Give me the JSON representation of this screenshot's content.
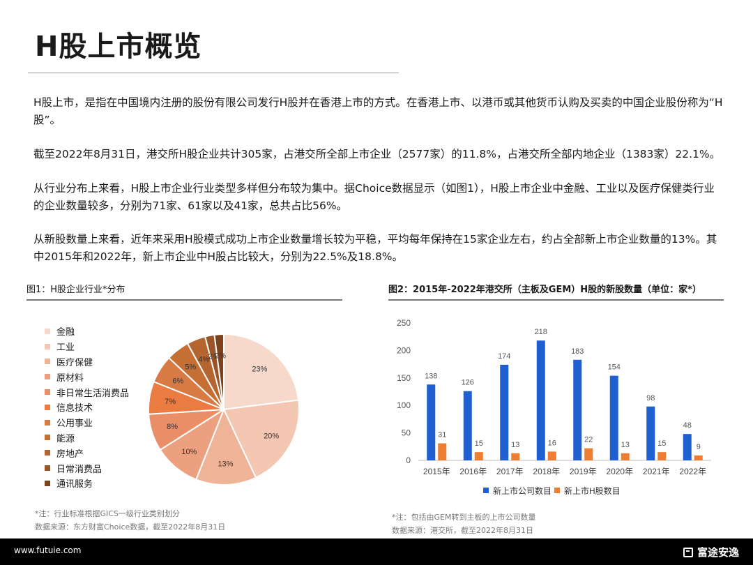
{
  "page": {
    "title": "H股上市概览",
    "paragraphs": [
      "H股上市，是指在中国境内注册的股份有限公司发行H股并在香港上市的方式。在香港上市、以港币或其他货币认购及买卖的中国企业股份称为“H股”。",
      "截至2022年8月31日，港交所H股企业共计305家，占港交所全部上市企业（2577家）的11.8%，占港交所全部内地企业（1383家）22.1%。",
      "从行业分布上来看，H股上市企业行业类型多样但分布较为集中。据Choice数据显示（如图1），H股上市企业中金融、工业以及医疗保健类行业的企业数量较多，分别为71家、61家以及41家，总共占比56%。",
      "从新股数量上来看，近年来采用H股模式成功上市企业数量增长较为平稳，平均每年保持在15家企业左右，约占全部新上市企业数量的13%。其中2015年和2022年，新上市企业中H股占比较大，分别为22.5%及18.8%。"
    ]
  },
  "figure1": {
    "title": "图1：H股企业行业*分布",
    "note1": "*注：行业标准根据GICS一级行业类别划分",
    "note2": "数据来源：东方财富Choice数据，截至2022年8月31日"
  },
  "figure2": {
    "title": "图2：2015年-2022年港交所（主板及GEM）H股的新股数量（单位：家*）",
    "note1": "*注：包括由GEM转到主板的上市公司数量",
    "note2": "数据来源：港交所，截至2022年8月31日"
  },
  "chart_data": [
    {
      "type": "pie",
      "categories": [
        "金融",
        "工业",
        "医疗保健",
        "原材料",
        "非日常生活消费品",
        "信息技术",
        "公用事业",
        "能源",
        "房地产",
        "日常消费品",
        "通讯服务"
      ],
      "values": [
        23,
        20,
        13,
        10,
        8,
        7,
        6,
        5,
        4,
        2,
        2
      ],
      "labels": [
        "23%",
        "20%",
        "13%",
        "10%",
        "8%",
        "7%",
        "6%",
        "5%",
        "4%",
        "2%",
        "2%"
      ],
      "colors": [
        "#f7d9cb",
        "#f4c7b2",
        "#efb398",
        "#eca07f",
        "#e98e67",
        "#ea7b41",
        "#d77a43",
        "#c66f35",
        "#b5652f",
        "#9a5427",
        "#7e421c"
      ],
      "legend_position": "left"
    },
    {
      "type": "bar",
      "categories": [
        "2015年",
        "2016年",
        "2017年",
        "2018年",
        "2019年",
        "2020年",
        "2021年",
        "2022年"
      ],
      "series": [
        {
          "name": "新上市公司数目",
          "values": [
            138,
            126,
            174,
            218,
            183,
            154,
            98,
            48
          ],
          "color": "#1f5fd1"
        },
        {
          "name": "新上市H股数目",
          "values": [
            31,
            15,
            13,
            16,
            22,
            13,
            15,
            9
          ],
          "color": "#ed7d31"
        }
      ],
      "ylim": [
        0,
        250
      ],
      "yticks": [
        "0",
        "50",
        "100",
        "150",
        "200",
        "250"
      ],
      "grid": false,
      "legend_position": "bottom"
    }
  ],
  "footer": {
    "url": "www.futuie.com",
    "brand": "富途安逸"
  }
}
